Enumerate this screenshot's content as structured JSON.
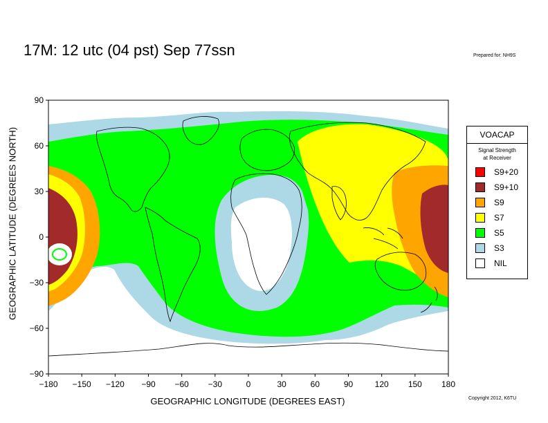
{
  "header": {
    "title": "17M:  12 utc (04 pst) Sep 77ssn",
    "prepared": "Prepared for: NH9S"
  },
  "footer": {
    "copyright": "Copyright 2012, K6TU"
  },
  "axes": {
    "xlabel": "GEOGRAPHIC LONGITUDE (DEGREES EAST)",
    "ylabel": "GEOGRAPHIC LATITUDE (DEGREES NORTH)",
    "xticks": [
      "−180",
      "−150",
      "−120",
      "−90",
      "−60",
      "−30",
      "0",
      "30",
      "60",
      "90",
      "120",
      "150",
      "180"
    ],
    "yticks": [
      "90",
      "60",
      "30",
      "0",
      "−30",
      "−60",
      "−90"
    ],
    "xrange": [
      -180,
      180
    ],
    "yrange": [
      -90,
      90
    ]
  },
  "legend": {
    "title": "VOACAP",
    "subtitle_line1": "Signal Strength",
    "subtitle_line2": "at Receiver",
    "items": [
      {
        "label": "S9+20",
        "color": "#ff0000"
      },
      {
        "label": "S9+10",
        "color": "#a32a2a"
      },
      {
        "label": "S9",
        "color": "#ffa500"
      },
      {
        "label": "S7",
        "color": "#ffff00"
      },
      {
        "label": "S5",
        "color": "#00ff00"
      },
      {
        "label": "S3",
        "color": "#add8e6"
      },
      {
        "label": "NIL",
        "color": "#ffffff"
      }
    ]
  },
  "colors": {
    "s9p10": "#a32a2a",
    "s9": "#ffa500",
    "s7": "#ffff00",
    "s5": "#00ff00",
    "s3": "#add8e6",
    "nil": "#ffffff",
    "coast": "#000000"
  }
}
